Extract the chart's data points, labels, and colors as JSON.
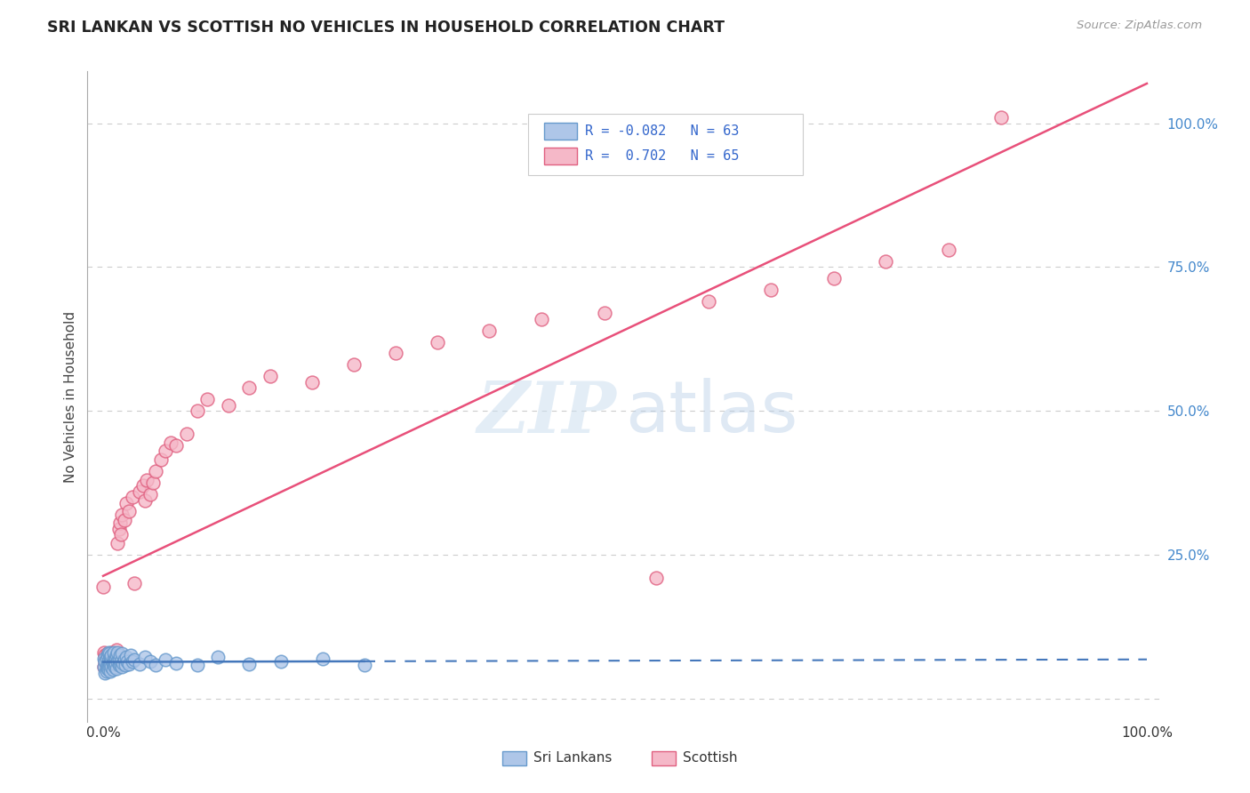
{
  "title": "SRI LANKAN VS SCOTTISH NO VEHICLES IN HOUSEHOLD CORRELATION CHART",
  "source": "Source: ZipAtlas.com",
  "ylabel": "No Vehicles in Household",
  "sri_lankan_color": "#aec6e8",
  "scottish_color": "#f5b8c8",
  "sri_lankan_edge_color": "#6699cc",
  "scottish_edge_color": "#e06080",
  "sri_lankan_line_color": "#4477bb",
  "scottish_line_color": "#e8507a",
  "watermark_zip_color": "#ccdff0",
  "watermark_atlas_color": "#b8cfe8",
  "grid_color": "#cccccc",
  "tick_color_right": "#4488cc",
  "title_color": "#222222",
  "source_color": "#999999",
  "legend_border_color": "#cccccc",
  "sri_lankan_N": 63,
  "scottish_N": 65,
  "sri_lankan_R": -0.082,
  "scottish_R": 0.702,
  "sri_lankan_x": [
    0.001,
    0.001,
    0.002,
    0.002,
    0.003,
    0.003,
    0.003,
    0.004,
    0.004,
    0.004,
    0.005,
    0.005,
    0.005,
    0.006,
    0.006,
    0.006,
    0.007,
    0.007,
    0.007,
    0.008,
    0.008,
    0.008,
    0.009,
    0.009,
    0.01,
    0.01,
    0.01,
    0.011,
    0.011,
    0.012,
    0.012,
    0.013,
    0.013,
    0.014,
    0.014,
    0.015,
    0.015,
    0.016,
    0.016,
    0.017,
    0.018,
    0.018,
    0.019,
    0.02,
    0.021,
    0.022,
    0.023,
    0.025,
    0.026,
    0.028,
    0.03,
    0.035,
    0.04,
    0.045,
    0.05,
    0.06,
    0.07,
    0.09,
    0.11,
    0.14,
    0.17,
    0.21,
    0.25
  ],
  "sri_lankan_y": [
    0.055,
    0.07,
    0.045,
    0.065,
    0.055,
    0.07,
    0.048,
    0.06,
    0.075,
    0.052,
    0.065,
    0.08,
    0.05,
    0.062,
    0.078,
    0.055,
    0.06,
    0.072,
    0.048,
    0.068,
    0.055,
    0.075,
    0.062,
    0.05,
    0.07,
    0.058,
    0.08,
    0.065,
    0.055,
    0.07,
    0.06,
    0.075,
    0.052,
    0.065,
    0.08,
    0.058,
    0.068,
    0.06,
    0.075,
    0.065,
    0.055,
    0.078,
    0.062,
    0.068,
    0.058,
    0.072,
    0.065,
    0.06,
    0.075,
    0.065,
    0.068,
    0.06,
    0.072,
    0.065,
    0.058,
    0.068,
    0.062,
    0.058,
    0.072,
    0.06,
    0.065,
    0.07,
    0.058
  ],
  "scottish_x": [
    0.0,
    0.001,
    0.001,
    0.002,
    0.002,
    0.003,
    0.003,
    0.004,
    0.004,
    0.005,
    0.005,
    0.006,
    0.006,
    0.007,
    0.007,
    0.008,
    0.008,
    0.009,
    0.01,
    0.01,
    0.011,
    0.012,
    0.012,
    0.013,
    0.014,
    0.015,
    0.016,
    0.017,
    0.018,
    0.02,
    0.022,
    0.025,
    0.028,
    0.03,
    0.035,
    0.038,
    0.04,
    0.042,
    0.045,
    0.048,
    0.05,
    0.055,
    0.06,
    0.065,
    0.07,
    0.08,
    0.09,
    0.1,
    0.12,
    0.14,
    0.16,
    0.2,
    0.24,
    0.28,
    0.32,
    0.37,
    0.42,
    0.48,
    0.53,
    0.58,
    0.64,
    0.7,
    0.75,
    0.81,
    0.86
  ],
  "scottish_y": [
    0.195,
    0.055,
    0.08,
    0.065,
    0.075,
    0.058,
    0.07,
    0.06,
    0.078,
    0.065,
    0.055,
    0.068,
    0.058,
    0.072,
    0.06,
    0.065,
    0.08,
    0.07,
    0.062,
    0.075,
    0.06,
    0.078,
    0.068,
    0.085,
    0.27,
    0.295,
    0.305,
    0.285,
    0.32,
    0.31,
    0.34,
    0.325,
    0.35,
    0.2,
    0.36,
    0.37,
    0.345,
    0.38,
    0.355,
    0.375,
    0.395,
    0.415,
    0.43,
    0.445,
    0.44,
    0.46,
    0.5,
    0.52,
    0.51,
    0.54,
    0.56,
    0.55,
    0.58,
    0.6,
    0.62,
    0.64,
    0.66,
    0.67,
    0.21,
    0.69,
    0.71,
    0.73,
    0.76,
    0.78,
    1.01
  ],
  "xlim": [
    -0.015,
    1.015
  ],
  "ylim": [
    -0.04,
    1.09
  ],
  "xtick_positions": [
    0.0,
    1.0
  ],
  "xtick_labels": [
    "0.0%",
    "100.0%"
  ],
  "ytick_positions": [
    0.0,
    0.25,
    0.5,
    0.75,
    1.0
  ],
  "ytick_labels": [
    "",
    "25.0%",
    "50.0%",
    "75.0%",
    "100.0%"
  ]
}
